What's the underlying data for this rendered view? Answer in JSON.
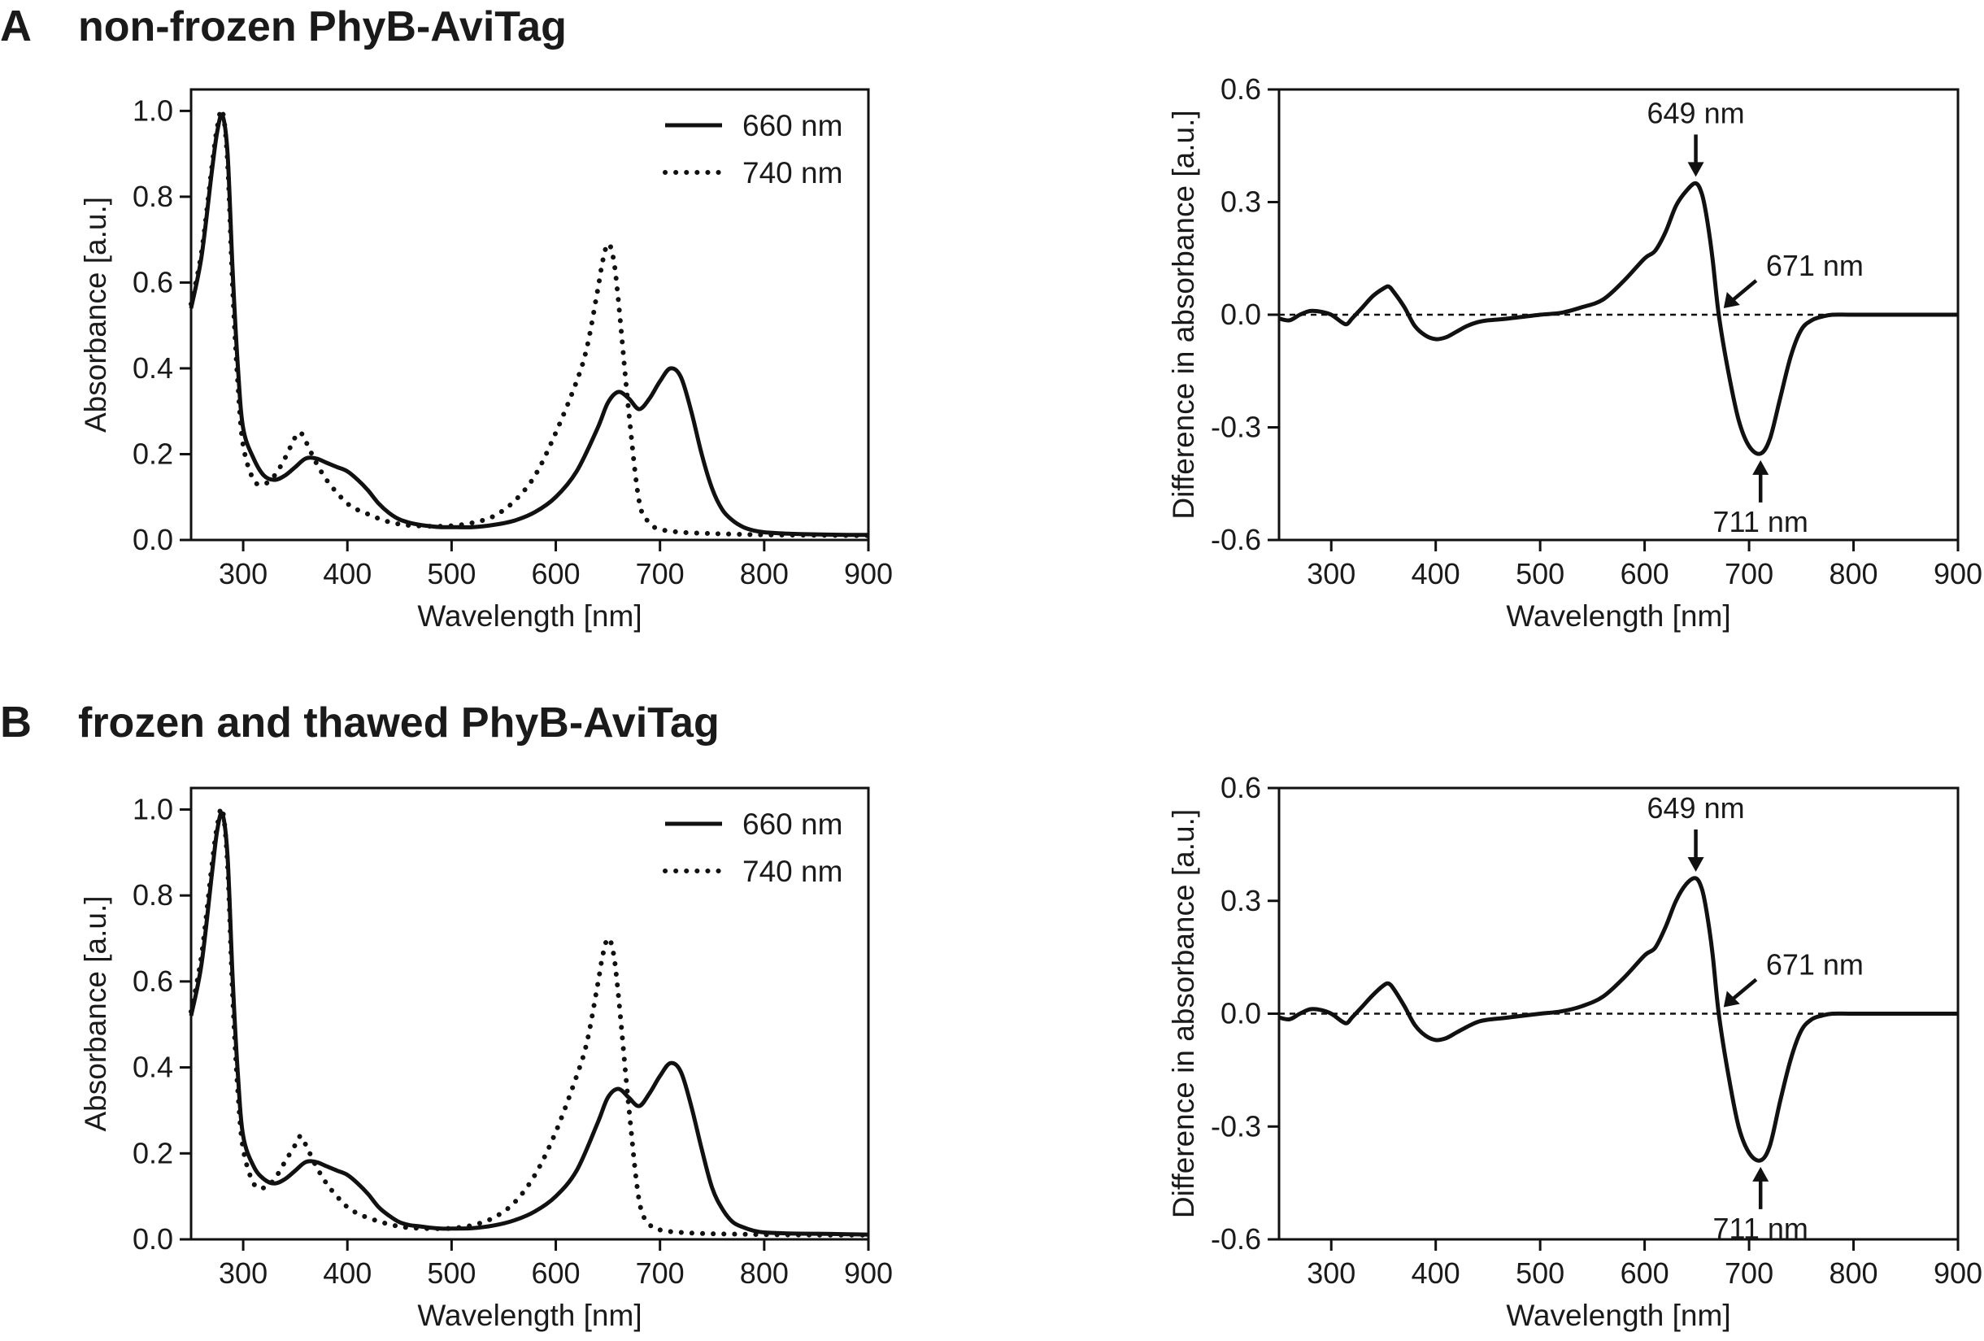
{
  "panels": [
    {
      "letter": "A",
      "title": "non-frozen PhyB-AviTag"
    },
    {
      "letter": "B",
      "title": "frozen and thawed PhyB-AviTag"
    }
  ],
  "chart_data": [
    {
      "type": "line",
      "panel": "A",
      "xlabel": "Wavelength [nm]",
      "ylabel": "Absorbance [a.u.]",
      "xlim": [
        250,
        900
      ],
      "ylim": [
        0,
        1.05
      ],
      "xticks": [
        300,
        400,
        500,
        600,
        700,
        800,
        900
      ],
      "yticks": [
        0.0,
        0.2,
        0.4,
        0.6,
        0.8,
        1.0
      ],
      "ytick_labels": [
        "0.0",
        "0.2",
        "0.4",
        "0.6",
        "0.8",
        "1.0"
      ],
      "legend_position": "top-right",
      "series": [
        {
          "name": "660 nm",
          "style": "solid",
          "color": "#111111",
          "x": [
            250,
            260,
            270,
            275,
            280,
            285,
            290,
            295,
            300,
            310,
            320,
            330,
            340,
            350,
            360,
            370,
            380,
            390,
            400,
            410,
            420,
            430,
            440,
            450,
            460,
            470,
            480,
            490,
            500,
            520,
            540,
            560,
            580,
            600,
            620,
            640,
            650,
            660,
            670,
            680,
            690,
            700,
            710,
            720,
            730,
            740,
            750,
            760,
            770,
            780,
            790,
            800,
            820,
            850,
            880,
            900
          ],
          "y": [
            0.54,
            0.66,
            0.86,
            0.95,
            0.99,
            0.9,
            0.62,
            0.4,
            0.26,
            0.19,
            0.15,
            0.14,
            0.15,
            0.17,
            0.19,
            0.19,
            0.18,
            0.17,
            0.16,
            0.14,
            0.115,
            0.085,
            0.063,
            0.048,
            0.04,
            0.035,
            0.032,
            0.03,
            0.03,
            0.03,
            0.035,
            0.045,
            0.065,
            0.1,
            0.16,
            0.26,
            0.32,
            0.345,
            0.33,
            0.305,
            0.33,
            0.37,
            0.4,
            0.38,
            0.3,
            0.2,
            0.12,
            0.07,
            0.045,
            0.03,
            0.022,
            0.018,
            0.015,
            0.013,
            0.012,
            0.012
          ]
        },
        {
          "name": "740 nm",
          "style": "dotted",
          "color": "#111111",
          "x": [
            250,
            260,
            270,
            275,
            280,
            285,
            290,
            295,
            300,
            310,
            320,
            330,
            340,
            350,
            355,
            360,
            370,
            380,
            390,
            400,
            410,
            420,
            430,
            440,
            450,
            460,
            480,
            500,
            520,
            540,
            560,
            580,
            600,
            620,
            630,
            640,
            645,
            650,
            655,
            660,
            670,
            680,
            690,
            700,
            720,
            750,
            780,
            800,
            850,
            900
          ],
          "y": [
            0.55,
            0.67,
            0.87,
            0.96,
            1.0,
            0.88,
            0.58,
            0.36,
            0.22,
            0.14,
            0.13,
            0.15,
            0.19,
            0.24,
            0.25,
            0.23,
            0.18,
            0.14,
            0.11,
            0.085,
            0.07,
            0.06,
            0.05,
            0.042,
            0.037,
            0.034,
            0.032,
            0.033,
            0.04,
            0.055,
            0.09,
            0.15,
            0.25,
            0.37,
            0.45,
            0.58,
            0.65,
            0.69,
            0.66,
            0.56,
            0.3,
            0.09,
            0.04,
            0.025,
            0.018,
            0.015,
            0.013,
            0.012,
            0.011,
            0.01
          ]
        }
      ]
    },
    {
      "type": "line",
      "panel": "A",
      "xlabel": "Wavelength [nm]",
      "ylabel": "Difference in absorbance [a.u.]",
      "xlim": [
        250,
        900
      ],
      "ylim": [
        -0.6,
        0.6
      ],
      "xticks": [
        300,
        400,
        500,
        600,
        700,
        800,
        900
      ],
      "yticks": [
        -0.6,
        -0.3,
        0.0,
        0.3,
        0.6
      ],
      "ytick_labels": [
        "-0.6",
        "-0.3",
        "0.0",
        "0.3",
        "0.6"
      ],
      "reference_line": {
        "y": 0,
        "style": "dashed"
      },
      "series": [
        {
          "style": "solid",
          "color": "#111111",
          "x": [
            250,
            260,
            270,
            280,
            290,
            300,
            310,
            315,
            320,
            330,
            340,
            350,
            355,
            360,
            370,
            380,
            390,
            400,
            410,
            420,
            430,
            440,
            450,
            470,
            500,
            520,
            540,
            560,
            580,
            600,
            610,
            620,
            630,
            640,
            649,
            655,
            660,
            665,
            671,
            680,
            690,
            700,
            711,
            720,
            730,
            740,
            750,
            760,
            770,
            780,
            800,
            850,
            900
          ],
          "y": [
            -0.01,
            -0.015,
            0.0,
            0.01,
            0.008,
            0.0,
            -0.02,
            -0.025,
            -0.01,
            0.02,
            0.05,
            0.07,
            0.075,
            0.06,
            0.02,
            -0.03,
            -0.055,
            -0.065,
            -0.06,
            -0.045,
            -0.03,
            -0.02,
            -0.015,
            -0.01,
            0.0,
            0.005,
            0.02,
            0.04,
            0.09,
            0.15,
            0.17,
            0.22,
            0.29,
            0.33,
            0.35,
            0.32,
            0.25,
            0.15,
            0.0,
            -0.15,
            -0.28,
            -0.35,
            -0.37,
            -0.33,
            -0.22,
            -0.11,
            -0.04,
            -0.015,
            -0.005,
            0.0,
            0.0,
            0.0,
            0.0
          ]
        }
      ],
      "annotations": [
        {
          "label": "649 nm",
          "x": 649,
          "y": 0.35,
          "arrow": "down"
        },
        {
          "label": "671 nm",
          "x": 671,
          "y": 0.0,
          "arrow": "down-left"
        },
        {
          "label": "711 nm",
          "x": 711,
          "y": -0.37,
          "arrow": "up"
        }
      ]
    },
    {
      "type": "line",
      "panel": "B",
      "xlabel": "Wavelength [nm]",
      "ylabel": "Absorbance [a.u.]",
      "xlim": [
        250,
        900
      ],
      "ylim": [
        0,
        1.05
      ],
      "xticks": [
        300,
        400,
        500,
        600,
        700,
        800,
        900
      ],
      "yticks": [
        0.0,
        0.2,
        0.4,
        0.6,
        0.8,
        1.0
      ],
      "ytick_labels": [
        "0.0",
        "0.2",
        "0.4",
        "0.6",
        "0.8",
        "1.0"
      ],
      "legend_position": "top-right",
      "series": [
        {
          "name": "660 nm",
          "style": "solid",
          "color": "#111111",
          "x": [
            250,
            260,
            270,
            275,
            280,
            285,
            290,
            295,
            300,
            310,
            320,
            330,
            340,
            350,
            360,
            370,
            380,
            390,
            400,
            410,
            420,
            430,
            440,
            450,
            460,
            470,
            480,
            490,
            500,
            520,
            540,
            560,
            580,
            600,
            620,
            640,
            650,
            660,
            670,
            680,
            690,
            700,
            710,
            720,
            730,
            740,
            750,
            760,
            770,
            780,
            790,
            800,
            820,
            850,
            880,
            900
          ],
          "y": [
            0.52,
            0.64,
            0.85,
            0.95,
            0.99,
            0.89,
            0.6,
            0.38,
            0.24,
            0.17,
            0.14,
            0.13,
            0.14,
            0.16,
            0.18,
            0.18,
            0.17,
            0.16,
            0.15,
            0.13,
            0.105,
            0.075,
            0.055,
            0.04,
            0.033,
            0.03,
            0.027,
            0.025,
            0.025,
            0.026,
            0.032,
            0.044,
            0.065,
            0.1,
            0.16,
            0.27,
            0.33,
            0.35,
            0.33,
            0.31,
            0.34,
            0.38,
            0.41,
            0.39,
            0.31,
            0.21,
            0.12,
            0.07,
            0.04,
            0.028,
            0.02,
            0.016,
            0.014,
            0.013,
            0.012,
            0.011
          ]
        },
        {
          "name": "740 nm",
          "style": "dotted",
          "color": "#111111",
          "x": [
            250,
            260,
            270,
            275,
            280,
            285,
            290,
            295,
            300,
            310,
            320,
            330,
            340,
            350,
            355,
            360,
            370,
            380,
            390,
            400,
            410,
            420,
            430,
            440,
            450,
            460,
            480,
            500,
            520,
            540,
            560,
            580,
            600,
            620,
            630,
            640,
            645,
            650,
            655,
            660,
            670,
            680,
            690,
            700,
            720,
            750,
            780,
            800,
            850,
            900
          ],
          "y": [
            0.53,
            0.66,
            0.87,
            0.96,
            1.0,
            0.87,
            0.56,
            0.34,
            0.21,
            0.13,
            0.12,
            0.14,
            0.18,
            0.22,
            0.24,
            0.22,
            0.17,
            0.13,
            0.1,
            0.075,
            0.06,
            0.05,
            0.042,
            0.035,
            0.03,
            0.027,
            0.025,
            0.026,
            0.033,
            0.05,
            0.085,
            0.15,
            0.25,
            0.38,
            0.46,
            0.59,
            0.66,
            0.7,
            0.67,
            0.57,
            0.31,
            0.09,
            0.035,
            0.022,
            0.016,
            0.013,
            0.012,
            0.011,
            0.01,
            0.01
          ]
        }
      ]
    },
    {
      "type": "line",
      "panel": "B",
      "xlabel": "Wavelength [nm]",
      "ylabel": "Difference in absorbance [a.u.]",
      "xlim": [
        250,
        900
      ],
      "ylim": [
        -0.6,
        0.6
      ],
      "xticks": [
        300,
        400,
        500,
        600,
        700,
        800,
        900
      ],
      "yticks": [
        -0.6,
        -0.3,
        0.0,
        0.3,
        0.6
      ],
      "ytick_labels": [
        "-0.6",
        "-0.3",
        "0.0",
        "0.3",
        "0.6"
      ],
      "reference_line": {
        "y": 0,
        "style": "dashed"
      },
      "series": [
        {
          "style": "solid",
          "color": "#111111",
          "x": [
            250,
            260,
            270,
            280,
            290,
            300,
            310,
            315,
            320,
            330,
            340,
            350,
            355,
            360,
            370,
            380,
            390,
            400,
            410,
            420,
            430,
            440,
            450,
            470,
            500,
            520,
            540,
            560,
            580,
            600,
            610,
            620,
            630,
            640,
            649,
            655,
            660,
            665,
            671,
            680,
            690,
            700,
            711,
            720,
            730,
            740,
            750,
            760,
            770,
            780,
            800,
            850,
            900
          ],
          "y": [
            -0.01,
            -0.015,
            0.0,
            0.012,
            0.01,
            0.0,
            -0.02,
            -0.025,
            -0.01,
            0.02,
            0.05,
            0.075,
            0.08,
            0.065,
            0.02,
            -0.03,
            -0.058,
            -0.07,
            -0.065,
            -0.05,
            -0.035,
            -0.022,
            -0.016,
            -0.01,
            0.0,
            0.006,
            0.02,
            0.045,
            0.095,
            0.155,
            0.175,
            0.23,
            0.3,
            0.345,
            0.36,
            0.33,
            0.26,
            0.16,
            0.0,
            -0.16,
            -0.3,
            -0.37,
            -0.39,
            -0.35,
            -0.23,
            -0.12,
            -0.045,
            -0.015,
            -0.005,
            0.0,
            0.0,
            0.0,
            0.0
          ]
        }
      ],
      "annotations": [
        {
          "label": "649 nm",
          "x": 649,
          "y": 0.36,
          "arrow": "down"
        },
        {
          "label": "671 nm",
          "x": 671,
          "y": 0.0,
          "arrow": "down-left"
        },
        {
          "label": "711 nm",
          "x": 711,
          "y": -0.39,
          "arrow": "up"
        }
      ]
    }
  ]
}
